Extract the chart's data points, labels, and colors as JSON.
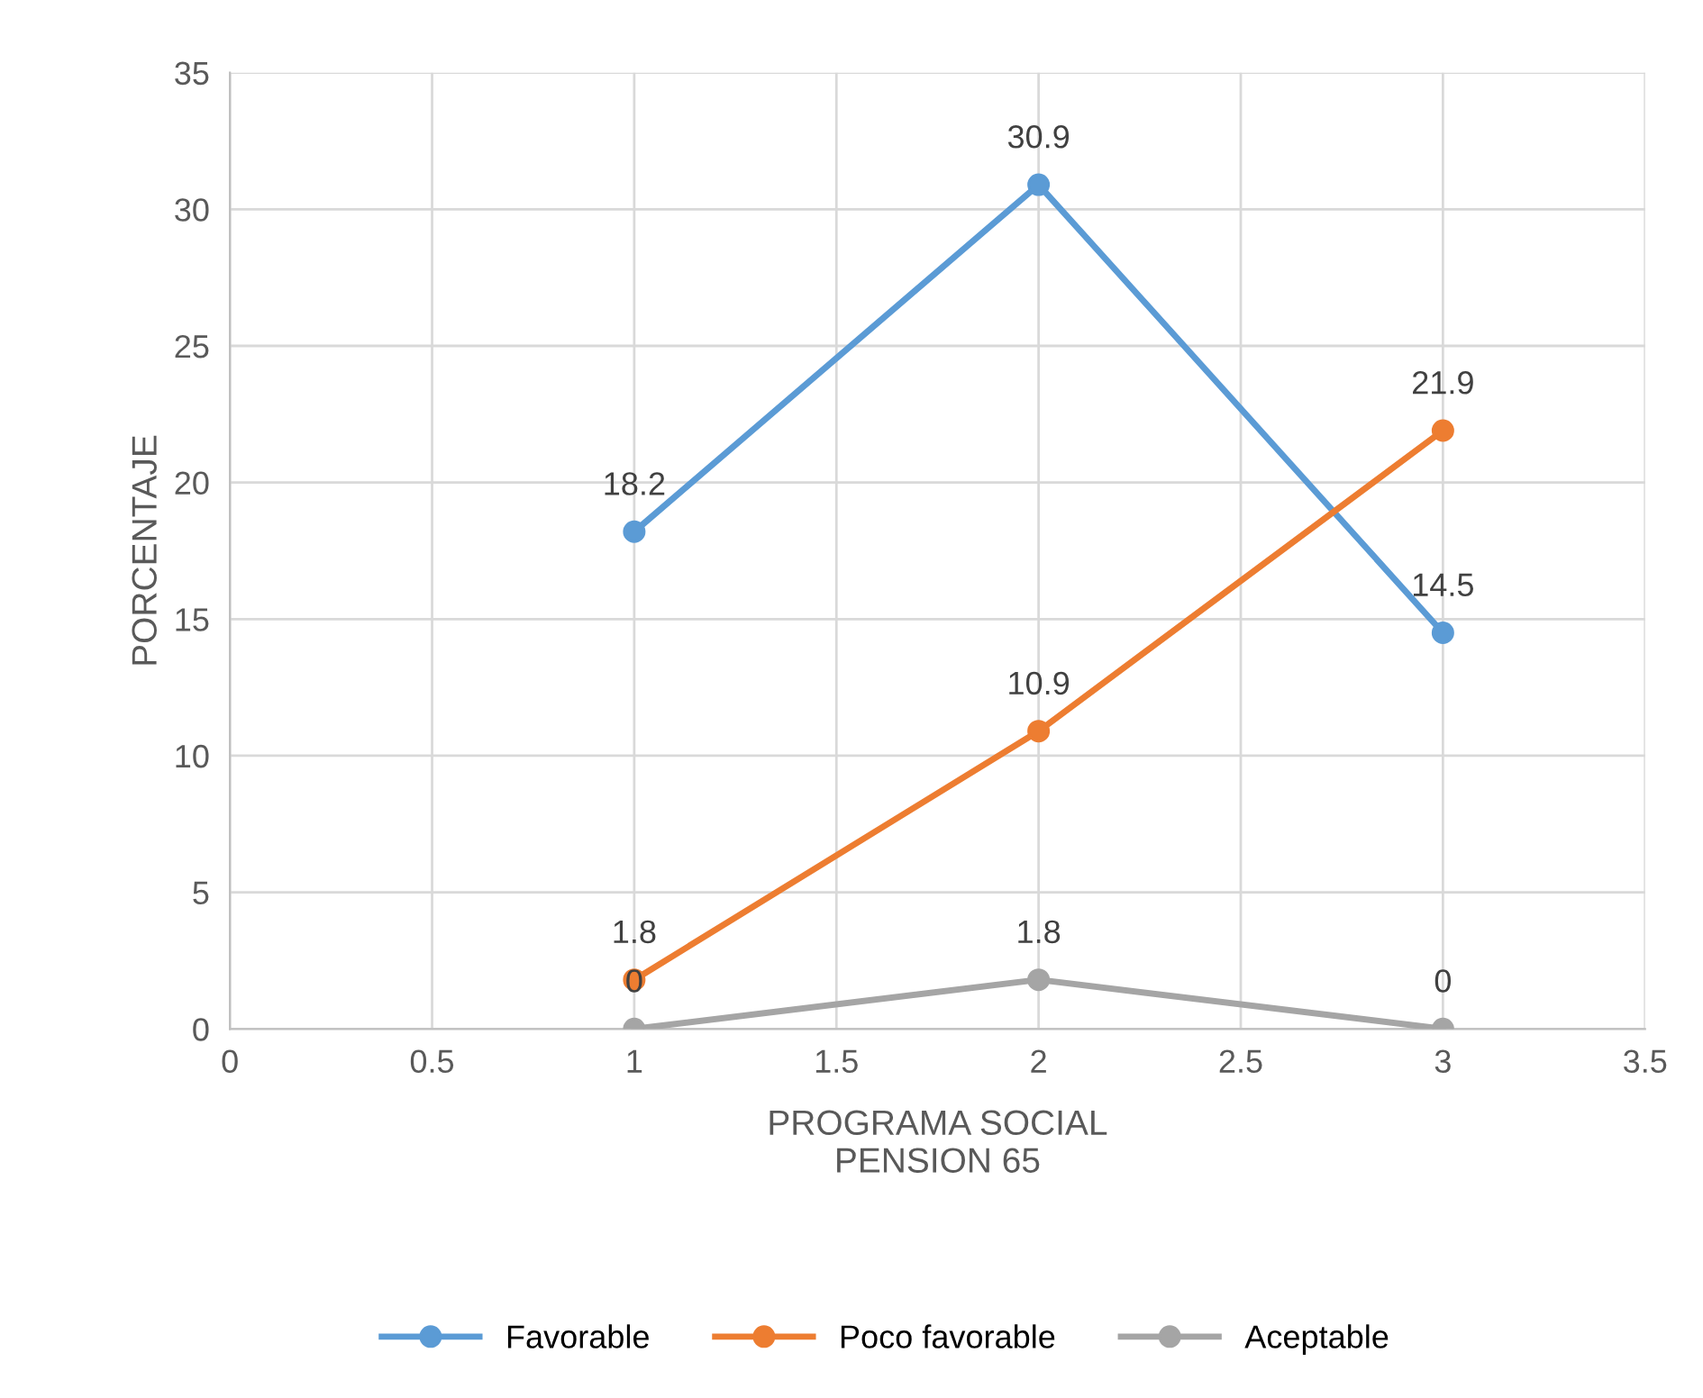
{
  "chart_data": {
    "type": "line",
    "xlabel": "PROGRAMA SOCIAL\nPENSION 65",
    "ylabel": "PORCENTAJE",
    "x": [
      1,
      2,
      3
    ],
    "series": [
      {
        "name": "Favorable",
        "color": "#5b9bd5",
        "values": [
          18.2,
          30.9,
          14.5
        ]
      },
      {
        "name": "Poco favorable",
        "color": "#ed7d31",
        "values": [
          1.8,
          10.9,
          21.9
        ]
      },
      {
        "name": "Aceptable",
        "color": "#a5a5a5",
        "values": [
          0,
          1.8,
          0
        ]
      }
    ],
    "xlim": [
      0,
      3.5
    ],
    "xticks": [
      0,
      0.5,
      1,
      1.5,
      2,
      2.5,
      3,
      3.5
    ],
    "ylim": [
      0,
      35
    ],
    "yticks": [
      0,
      5,
      10,
      15,
      20,
      25,
      30,
      35
    ],
    "grid": true,
    "legend": "bottom",
    "marker": "circle",
    "line_style": "solid",
    "data_labels": true
  }
}
